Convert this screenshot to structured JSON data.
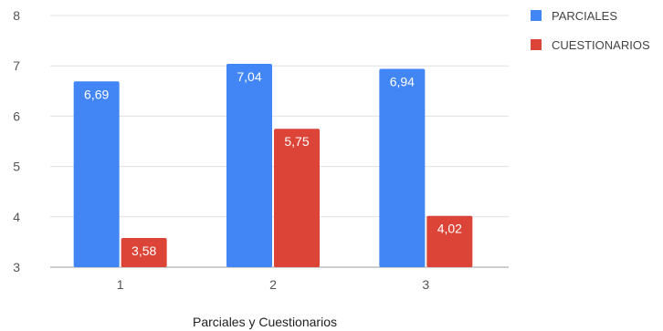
{
  "chart_data": {
    "type": "bar",
    "categories": [
      "1",
      "2",
      "3"
    ],
    "series": [
      {
        "name": "PARCIALES",
        "color": "#4285F4",
        "values": [
          6.69,
          7.04,
          6.94
        ],
        "labels": [
          "6,69",
          "7,04",
          "6,94"
        ]
      },
      {
        "name": "CUESTIONARIOS",
        "color": "#DB4437",
        "values": [
          3.58,
          5.75,
          4.02
        ],
        "labels": [
          "3,58",
          "5,75",
          "4,02"
        ]
      }
    ],
    "xlabel": "Parciales y Cuestionarios",
    "ylabel": "",
    "ylim": [
      3,
      8
    ],
    "yticks": [
      "3",
      "4",
      "5",
      "6",
      "7",
      "8"
    ],
    "grid": true,
    "legend_position": "right"
  }
}
